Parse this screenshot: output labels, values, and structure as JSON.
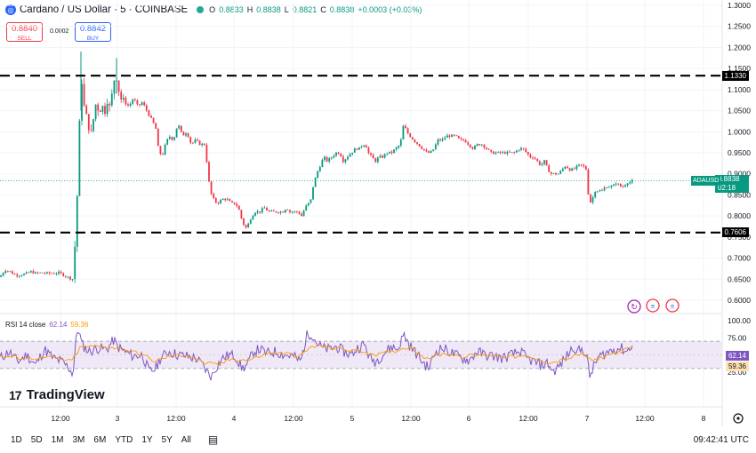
{
  "header": {
    "symbol_icon": "coinbase-icon",
    "title": "Cardano / US Dollar · 5 · COINBASE",
    "status_color": "#26a69a",
    "ohlc": {
      "o_label": "O",
      "o": "0.8833",
      "h_label": "H",
      "h": "0.8838",
      "l_label": "L",
      "l": "0.8821",
      "c_label": "C",
      "c": "0.8838",
      "change": "+0.0003 (+0.03%)"
    }
  },
  "trade": {
    "sell_price": "0.8840",
    "sell_label": "SELL",
    "spread": "0.0002",
    "buy_price": "0.8842",
    "buy_label": "BUY"
  },
  "price_axis": {
    "ticks": [
      "1.3000",
      "1.2500",
      "1.2000",
      "1.1500",
      "1.1000",
      "1.0500",
      "1.0000",
      "0.9500",
      "0.9000",
      "0.8500",
      "0.8000",
      "0.7500",
      "0.7000",
      "0.6500",
      "0.6000"
    ],
    "level_high": "1.1330",
    "level_low": "0.7606",
    "last_symbol": "ADAUSD",
    "last_price": "0.8838",
    "countdown": "02:18"
  },
  "rsi": {
    "label": "RSI 14 close",
    "value": "62.14",
    "ma_value": "59.36",
    "ticks": [
      "100.00",
      "75.00",
      "25.00"
    ],
    "line_color": "#7e57c2",
    "ma_color": "#ff9800"
  },
  "time_axis": [
    "12:00",
    "3",
    "12:00",
    "4",
    "12:00",
    "5",
    "12:00",
    "6",
    "12:00",
    "7",
    "12:00",
    "8"
  ],
  "logo": {
    "icon": "tradingview-logo-icon",
    "text": "TradingView"
  },
  "bottom": {
    "ranges": [
      "1D",
      "5D",
      "1M",
      "3M",
      "6M",
      "YTD",
      "1Y",
      "5Y",
      "All"
    ],
    "calendar_icon": "calendar-range-icon",
    "clock": "09:42:41 UTC"
  },
  "chart_data": {
    "type": "candlestick",
    "y_range": [
      0.58,
      1.305
    ],
    "horizontal_levels": [
      1.133,
      0.7606
    ],
    "path": [
      [
        0,
        0.655
      ],
      [
        3,
        0.665
      ],
      [
        6,
        0.672
      ],
      [
        11,
        0.668
      ],
      [
        17,
        0.66
      ],
      [
        22,
        0.66
      ],
      [
        28,
        0.662
      ],
      [
        35,
        0.668
      ],
      [
        40,
        0.664
      ],
      [
        46,
        0.665
      ],
      [
        53,
        0.664
      ],
      [
        60,
        0.664
      ],
      [
        67,
        0.665
      ],
      [
        73,
        0.658
      ],
      [
        79,
        0.652
      ],
      [
        83,
        0.65
      ],
      [
        84,
        0.72
      ],
      [
        86,
        0.8
      ],
      [
        88,
        0.92
      ],
      [
        90,
        1.06
      ],
      [
        92,
        1.12
      ],
      [
        95,
        1.05
      ],
      [
        98,
        1.03
      ],
      [
        102,
        0.99
      ],
      [
        105,
        1.03
      ],
      [
        108,
        1.07
      ],
      [
        111,
        1.05
      ],
      [
        115,
        1.06
      ],
      [
        118,
        1.05
      ],
      [
        121,
        1.08
      ],
      [
        124,
        1.05
      ],
      [
        127,
        1.11
      ],
      [
        130,
        1.14
      ],
      [
        132,
        1.12
      ],
      [
        135,
        1.08
      ],
      [
        140,
        1.07
      ],
      [
        145,
        1.06
      ],
      [
        150,
        1.08
      ],
      [
        155,
        1.06
      ],
      [
        160,
        1.07
      ],
      [
        165,
        1.05
      ],
      [
        170,
        1.03
      ],
      [
        175,
        1.01
      ],
      [
        178,
        0.96
      ],
      [
        182,
        0.94
      ],
      [
        186,
        0.97
      ],
      [
        190,
        0.99
      ],
      [
        195,
        0.98
      ],
      [
        200,
        1.02
      ],
      [
        205,
        0.99
      ],
      [
        210,
        1.0
      ],
      [
        215,
        0.97
      ],
      [
        220,
        0.98
      ],
      [
        225,
        0.97
      ],
      [
        230,
        0.97
      ],
      [
        233,
        0.92
      ],
      [
        236,
        0.86
      ],
      [
        240,
        0.84
      ],
      [
        244,
        0.83
      ],
      [
        250,
        0.84
      ],
      [
        255,
        0.84
      ],
      [
        260,
        0.83
      ],
      [
        264,
        0.83
      ],
      [
        268,
        0.82
      ],
      [
        272,
        0.79
      ],
      [
        276,
        0.77
      ],
      [
        279,
        0.78
      ],
      [
        283,
        0.8
      ],
      [
        287,
        0.81
      ],
      [
        292,
        0.81
      ],
      [
        297,
        0.82
      ],
      [
        302,
        0.81
      ],
      [
        308,
        0.81
      ],
      [
        313,
        0.81
      ],
      [
        318,
        0.81
      ],
      [
        322,
        0.82
      ],
      [
        326,
        0.81
      ],
      [
        330,
        0.81
      ],
      [
        335,
        0.81
      ],
      [
        339,
        0.8
      ],
      [
        343,
        0.82
      ],
      [
        347,
        0.83
      ],
      [
        350,
        0.84
      ],
      [
        352,
        0.87
      ],
      [
        356,
        0.9
      ],
      [
        360,
        0.92
      ],
      [
        364,
        0.94
      ],
      [
        368,
        0.93
      ],
      [
        373,
        0.94
      ],
      [
        378,
        0.95
      ],
      [
        382,
        0.95
      ],
      [
        386,
        0.93
      ],
      [
        390,
        0.94
      ],
      [
        395,
        0.95
      ],
      [
        400,
        0.96
      ],
      [
        404,
        0.96
      ],
      [
        408,
        0.97
      ],
      [
        411,
        0.97
      ],
      [
        414,
        0.95
      ],
      [
        418,
        0.94
      ],
      [
        422,
        0.93
      ],
      [
        426,
        0.94
      ],
      [
        430,
        0.94
      ],
      [
        435,
        0.95
      ],
      [
        440,
        0.95
      ],
      [
        445,
        0.96
      ],
      [
        450,
        0.97
      ],
      [
        454,
        1.02
      ],
      [
        457,
        1.0
      ],
      [
        461,
        0.99
      ],
      [
        465,
        0.98
      ],
      [
        470,
        0.97
      ],
      [
        475,
        0.96
      ],
      [
        480,
        0.95
      ],
      [
        484,
        0.95
      ],
      [
        488,
        0.96
      ],
      [
        492,
        0.98
      ],
      [
        497,
        0.98
      ],
      [
        502,
        0.99
      ],
      [
        507,
        0.99
      ],
      [
        512,
        0.99
      ],
      [
        517,
        0.98
      ],
      [
        522,
        0.98
      ],
      [
        527,
        0.97
      ],
      [
        532,
        0.96
      ],
      [
        537,
        0.97
      ],
      [
        542,
        0.97
      ],
      [
        547,
        0.96
      ],
      [
        552,
        0.95
      ],
      [
        557,
        0.95
      ],
      [
        562,
        0.95
      ],
      [
        567,
        0.95
      ],
      [
        572,
        0.95
      ],
      [
        578,
        0.95
      ],
      [
        584,
        0.96
      ],
      [
        588,
        0.96
      ],
      [
        592,
        0.95
      ],
      [
        596,
        0.94
      ],
      [
        600,
        0.94
      ],
      [
        604,
        0.93
      ],
      [
        608,
        0.92
      ],
      [
        612,
        0.93
      ],
      [
        616,
        0.91
      ],
      [
        620,
        0.9
      ],
      [
        624,
        0.9
      ],
      [
        628,
        0.9
      ],
      [
        632,
        0.91
      ],
      [
        636,
        0.92
      ],
      [
        640,
        0.91
      ],
      [
        645,
        0.91
      ],
      [
        650,
        0.92
      ],
      [
        655,
        0.92
      ],
      [
        659,
        0.91
      ],
      [
        661,
        0.86
      ],
      [
        663,
        0.83
      ],
      [
        666,
        0.84
      ],
      [
        669,
        0.86
      ],
      [
        673,
        0.86
      ],
      [
        677,
        0.86
      ],
      [
        681,
        0.87
      ],
      [
        685,
        0.87
      ],
      [
        689,
        0.87
      ],
      [
        693,
        0.88
      ],
      [
        697,
        0.87
      ],
      [
        701,
        0.87
      ],
      [
        705,
        0.88
      ],
      [
        709,
        0.88
      ],
      [
        712,
        0.884
      ]
    ],
    "rsi_path": [
      [
        0,
        45
      ],
      [
        10,
        55
      ],
      [
        20,
        40
      ],
      [
        30,
        50
      ],
      [
        40,
        35
      ],
      [
        50,
        58
      ],
      [
        60,
        45
      ],
      [
        70,
        40
      ],
      [
        78,
        30
      ],
      [
        82,
        22
      ],
      [
        86,
        78
      ],
      [
        88,
        90
      ],
      [
        92,
        65
      ],
      [
        100,
        55
      ],
      [
        110,
        60
      ],
      [
        120,
        58
      ],
      [
        128,
        72
      ],
      [
        132,
        62
      ],
      [
        140,
        55
      ],
      [
        150,
        48
      ],
      [
        160,
        50
      ],
      [
        168,
        25
      ],
      [
        175,
        30
      ],
      [
        180,
        45
      ],
      [
        190,
        55
      ],
      [
        200,
        50
      ],
      [
        210,
        48
      ],
      [
        220,
        45
      ],
      [
        228,
        35
      ],
      [
        233,
        25
      ],
      [
        238,
        18
      ],
      [
        242,
        30
      ],
      [
        250,
        45
      ],
      [
        258,
        50
      ],
      [
        265,
        48
      ],
      [
        272,
        30
      ],
      [
        278,
        35
      ],
      [
        285,
        55
      ],
      [
        292,
        58
      ],
      [
        300,
        52
      ],
      [
        310,
        55
      ],
      [
        320,
        50
      ],
      [
        330,
        48
      ],
      [
        338,
        40
      ],
      [
        345,
        78
      ],
      [
        350,
        82
      ],
      [
        356,
        68
      ],
      [
        362,
        60
      ],
      [
        370,
        58
      ],
      [
        378,
        62
      ],
      [
        386,
        55
      ],
      [
        395,
        50
      ],
      [
        402,
        60
      ],
      [
        410,
        65
      ],
      [
        416,
        45
      ],
      [
        422,
        40
      ],
      [
        430,
        50
      ],
      [
        440,
        62
      ],
      [
        447,
        58
      ],
      [
        454,
        80
      ],
      [
        460,
        65
      ],
      [
        468,
        52
      ],
      [
        475,
        40
      ],
      [
        482,
        30
      ],
      [
        490,
        55
      ],
      [
        497,
        60
      ],
      [
        505,
        55
      ],
      [
        512,
        50
      ],
      [
        520,
        45
      ],
      [
        528,
        42
      ],
      [
        536,
        55
      ],
      [
        545,
        50
      ],
      [
        555,
        48
      ],
      [
        565,
        45
      ],
      [
        575,
        50
      ],
      [
        585,
        55
      ],
      [
        592,
        45
      ],
      [
        600,
        40
      ],
      [
        608,
        35
      ],
      [
        616,
        38
      ],
      [
        622,
        25
      ],
      [
        630,
        35
      ],
      [
        638,
        50
      ],
      [
        645,
        62
      ],
      [
        650,
        55
      ],
      [
        656,
        58
      ],
      [
        660,
        45
      ],
      [
        663,
        18
      ],
      [
        666,
        28
      ],
      [
        672,
        45
      ],
      [
        680,
        52
      ],
      [
        690,
        58
      ],
      [
        698,
        60
      ],
      [
        705,
        55
      ],
      [
        710,
        65
      ],
      [
        712,
        62.14
      ]
    ],
    "rsi_ma_path": [
      [
        0,
        48
      ],
      [
        20,
        46
      ],
      [
        40,
        45
      ],
      [
        60,
        46
      ],
      [
        80,
        40
      ],
      [
        90,
        60
      ],
      [
        100,
        62
      ],
      [
        120,
        62
      ],
      [
        140,
        58
      ],
      [
        160,
        50
      ],
      [
        175,
        40
      ],
      [
        190,
        48
      ],
      [
        210,
        50
      ],
      [
        230,
        38
      ],
      [
        245,
        35
      ],
      [
        260,
        44
      ],
      [
        280,
        42
      ],
      [
        300,
        52
      ],
      [
        320,
        52
      ],
      [
        338,
        48
      ],
      [
        350,
        62
      ],
      [
        365,
        62
      ],
      [
        385,
        58
      ],
      [
        405,
        56
      ],
      [
        425,
        50
      ],
      [
        445,
        56
      ],
      [
        460,
        62
      ],
      [
        480,
        45
      ],
      [
        500,
        52
      ],
      [
        520,
        48
      ],
      [
        545,
        50
      ],
      [
        570,
        48
      ],
      [
        595,
        46
      ],
      [
        620,
        38
      ],
      [
        640,
        45
      ],
      [
        656,
        52
      ],
      [
        665,
        40
      ],
      [
        680,
        48
      ],
      [
        700,
        56
      ],
      [
        712,
        59.36
      ]
    ]
  }
}
